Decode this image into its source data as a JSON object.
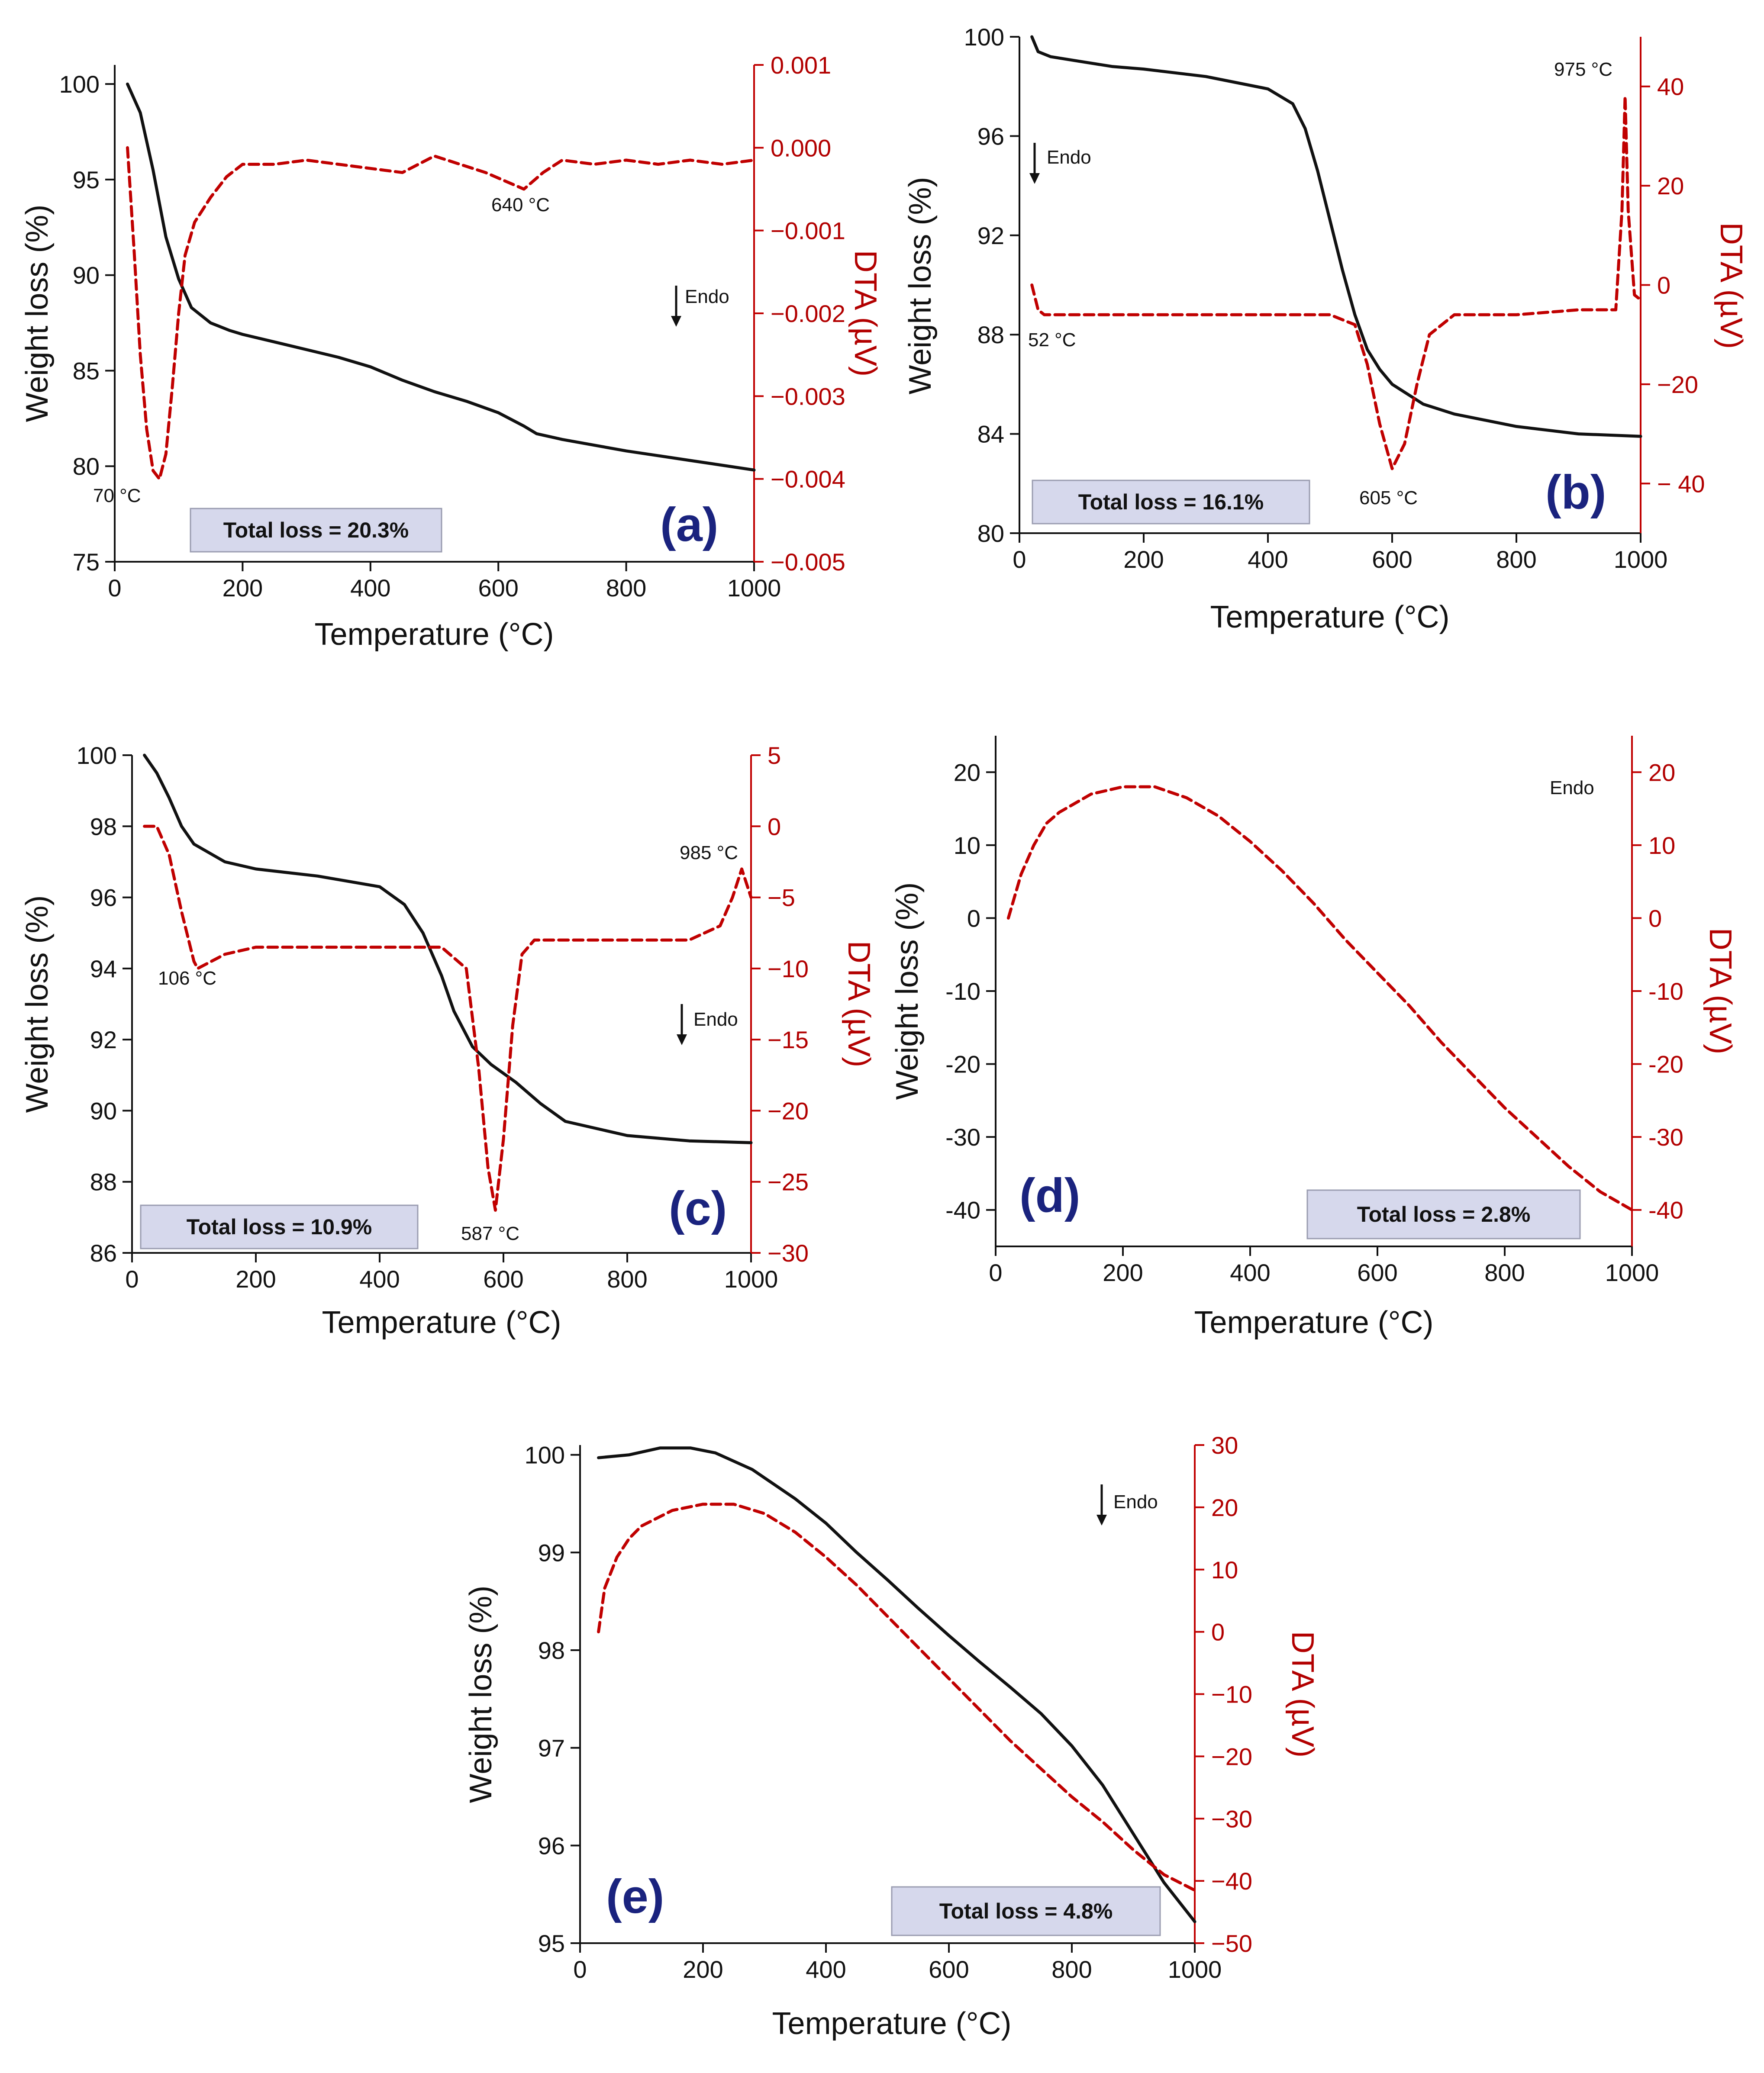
{
  "colors": {
    "tga": "#111111",
    "dta": "#c00000",
    "badge_bg": "#d6d8ec",
    "panel_label": "#1a237e"
  },
  "chart_data": [
    {
      "id": "a",
      "type": "line",
      "panel_label": "(a)",
      "xlabel": "Temperature (°C)",
      "ylabel": "Weight loss (%)",
      "y2label": "DTA (µV)",
      "xlim": [
        0,
        1000
      ],
      "ylim": [
        75,
        101
      ],
      "y2lim": [
        -0.005,
        0.001
      ],
      "xticks": [
        0,
        200,
        400,
        600,
        800,
        1000
      ],
      "yticks": [
        75,
        80,
        85,
        90,
        95,
        100
      ],
      "y2ticks": [
        -0.005,
        -0.004,
        -0.003,
        -0.002,
        -0.001,
        0.0,
        0.001
      ],
      "y2tick_labels": [
        "−0.005",
        "−0.004",
        "−0.003",
        "−0.002",
        "−0.001",
        "0.000",
        "0.001"
      ],
      "total_loss": "Total loss = 20.3%",
      "endo": "Endo",
      "series": [
        {
          "name": "TGA",
          "axis": "left",
          "style": "solid",
          "x": [
            20,
            40,
            60,
            80,
            100,
            120,
            150,
            180,
            200,
            250,
            300,
            350,
            400,
            450,
            500,
            550,
            600,
            640,
            660,
            680,
            700,
            750,
            800,
            850,
            900,
            950,
            1000
          ],
          "y": [
            100,
            98.5,
            95.5,
            92,
            89.8,
            88.3,
            87.5,
            87.1,
            86.9,
            86.5,
            86.1,
            85.7,
            85.2,
            84.5,
            83.9,
            83.4,
            82.8,
            82.1,
            81.7,
            81.55,
            81.4,
            81.1,
            80.8,
            80.55,
            80.3,
            80.05,
            79.8
          ]
        },
        {
          "name": "DTA",
          "axis": "right",
          "style": "dashed",
          "x": [
            20,
            30,
            40,
            50,
            60,
            70,
            80,
            90,
            100,
            110,
            125,
            150,
            175,
            200,
            250,
            300,
            350,
            400,
            450,
            500,
            540,
            580,
            610,
            640,
            670,
            700,
            750,
            800,
            850,
            900,
            950,
            1000
          ],
          "y": [
            0.0,
            -0.0012,
            -0.0025,
            -0.0034,
            -0.0039,
            -0.004,
            -0.0037,
            -0.0029,
            -0.002,
            -0.0013,
            -0.0009,
            -0.0006,
            -0.00035,
            -0.0002,
            -0.0002,
            -0.00015,
            -0.0002,
            -0.00025,
            -0.0003,
            -0.0001,
            -0.0002,
            -0.0003,
            -0.0004,
            -0.0005,
            -0.0003,
            -0.00015,
            -0.0002,
            -0.00015,
            -0.0002,
            -0.00015,
            -0.0002,
            -0.00015
          ]
        }
      ],
      "annotations": [
        "70 °C",
        "640 °C"
      ]
    },
    {
      "id": "b",
      "type": "line",
      "panel_label": "(b)",
      "xlabel": "Temperature (°C)",
      "ylabel": "Weight loss (%)",
      "y2label": "DTA (µV)",
      "xlim": [
        0,
        1000
      ],
      "ylim": [
        80,
        100
      ],
      "y2lim": [
        -50,
        50
      ],
      "xticks": [
        0,
        200,
        400,
        600,
        800,
        1000
      ],
      "yticks": [
        80,
        84,
        88,
        92,
        96,
        100
      ],
      "y2ticks": [
        -40,
        -20,
        0,
        20,
        40
      ],
      "y2tick_labels": [
        "− 40",
        "−20",
        "0",
        "20",
        "40"
      ],
      "total_loss": "Total loss = 16.1%",
      "endo": "Endo",
      "series": [
        {
          "name": "TGA",
          "axis": "left",
          "style": "solid",
          "x": [
            20,
            30,
            50,
            100,
            150,
            200,
            300,
            400,
            440,
            460,
            480,
            500,
            520,
            540,
            560,
            580,
            600,
            650,
            700,
            800,
            900,
            1000
          ],
          "y": [
            100,
            99.4,
            99.2,
            99.0,
            98.8,
            98.7,
            98.4,
            97.9,
            97.3,
            96.3,
            94.6,
            92.6,
            90.6,
            88.8,
            87.4,
            86.6,
            86.0,
            85.2,
            84.8,
            84.3,
            84.0,
            83.9
          ]
        },
        {
          "name": "DTA",
          "axis": "right",
          "style": "dashed",
          "x": [
            20,
            30,
            40,
            60,
            100,
            200,
            300,
            400,
            500,
            540,
            560,
            580,
            600,
            620,
            640,
            660,
            700,
            750,
            800,
            900,
            960,
            970,
            975,
            980,
            990,
            1000
          ],
          "y": [
            0,
            -5,
            -6,
            -6,
            -6,
            -6,
            -6,
            -6,
            -6,
            -8,
            -16,
            -28,
            -37,
            -32,
            -20,
            -10,
            -6,
            -6,
            -6,
            -5,
            -5,
            15,
            38,
            15,
            -2,
            -3
          ]
        }
      ],
      "annotations": [
        "52 °C",
        "605 °C",
        "975 °C"
      ]
    },
    {
      "id": "c",
      "type": "line",
      "panel_label": "(c)",
      "xlabel": "Temperature (°C)",
      "ylabel": "Weight loss (%)",
      "y2label": "DTA (µV)",
      "xlim": [
        0,
        1000
      ],
      "ylim": [
        86,
        100
      ],
      "y2lim": [
        -30,
        5
      ],
      "xticks": [
        0,
        200,
        400,
        600,
        800,
        1000
      ],
      "yticks": [
        86,
        88,
        90,
        92,
        94,
        96,
        98,
        100
      ],
      "y2ticks": [
        -30,
        -25,
        -20,
        -15,
        -10,
        -5,
        0,
        5
      ],
      "y2tick_labels": [
        "−30",
        "−25",
        "−20",
        "−15",
        "−10",
        "−5",
        "0",
        "5"
      ],
      "total_loss": "Total loss = 10.9%",
      "endo": "Endo",
      "series": [
        {
          "name": "TGA",
          "axis": "left",
          "style": "solid",
          "x": [
            20,
            40,
            60,
            80,
            100,
            150,
            200,
            300,
            400,
            440,
            470,
            500,
            520,
            550,
            580,
            620,
            660,
            700,
            750,
            800,
            900,
            1000
          ],
          "y": [
            100,
            99.5,
            98.8,
            98.0,
            97.5,
            97.0,
            96.8,
            96.6,
            96.3,
            95.8,
            95.0,
            93.8,
            92.8,
            91.8,
            91.3,
            90.8,
            90.2,
            89.7,
            89.5,
            89.3,
            89.15,
            89.1
          ]
        },
        {
          "name": "DTA",
          "axis": "right",
          "style": "dashed",
          "x": [
            20,
            40,
            60,
            80,
            100,
            106,
            150,
            200,
            300,
            400,
            500,
            540,
            560,
            575,
            587,
            600,
            615,
            630,
            650,
            700,
            800,
            900,
            950,
            970,
            985,
            1000
          ],
          "y": [
            0,
            0,
            -2,
            -6,
            -9.5,
            -10,
            -9,
            -8.5,
            -8.5,
            -8.5,
            -8.5,
            -10,
            -17,
            -24,
            -27,
            -22,
            -14,
            -9,
            -8,
            -8,
            -8,
            -8,
            -7,
            -5,
            -3,
            -5
          ]
        }
      ],
      "annotations": [
        "106 °C",
        "587 °C",
        "985 °C"
      ]
    },
    {
      "id": "d",
      "type": "line",
      "panel_label": "(d)",
      "xlabel": "Temperature (°C)",
      "ylabel": "Weight loss (%)",
      "y2label": "DTA (µV)",
      "xlim": [
        0,
        1000
      ],
      "ylim": [
        -45,
        25
      ],
      "y2lim": [
        -45,
        25
      ],
      "xticks": [
        0,
        200,
        400,
        600,
        800,
        1000
      ],
      "yticks": [
        -40,
        -30,
        -20,
        -10,
        0,
        10,
        20
      ],
      "y2ticks": [
        -40,
        -30,
        -20,
        -10,
        0,
        10,
        20
      ],
      "total_loss": "Total loss = 2.8%",
      "endo": "Endo",
      "series": [
        {
          "name": "DTA",
          "axis": "right",
          "style": "dashed",
          "x": [
            20,
            40,
            60,
            80,
            100,
            150,
            200,
            250,
            300,
            350,
            400,
            450,
            500,
            550,
            600,
            650,
            700,
            750,
            800,
            850,
            900,
            950,
            1000
          ],
          "y": [
            0,
            6,
            10,
            13,
            14.5,
            17,
            18,
            18,
            16.5,
            14,
            10.5,
            6.5,
            2,
            -3,
            -7.5,
            -12,
            -17,
            -21.5,
            -26,
            -30,
            -34,
            -37.5,
            -40
          ]
        }
      ],
      "annotations": []
    },
    {
      "id": "e",
      "type": "line",
      "panel_label": "(e)",
      "xlabel": "Temperature (°C)",
      "ylabel": "Weight loss (%)",
      "y2label": "DTA (µV)",
      "xlim": [
        0,
        1000
      ],
      "ylim": [
        95,
        100.1
      ],
      "y2lim": [
        -50,
        30
      ],
      "xticks": [
        0,
        200,
        400,
        600,
        800,
        1000
      ],
      "yticks": [
        95,
        96,
        97,
        98,
        99,
        100
      ],
      "y2ticks": [
        -50,
        -40,
        -30,
        -20,
        -10,
        0,
        10,
        20,
        30
      ],
      "y2tick_labels": [
        "−50",
        "−40",
        "−30",
        "−20",
        "−10",
        "0",
        "10",
        "20",
        "30"
      ],
      "total_loss": "Total loss = 4.8%",
      "endo": "Endo",
      "series": [
        {
          "name": "TGA",
          "axis": "left",
          "style": "solid",
          "x": [
            30,
            80,
            130,
            180,
            220,
            280,
            350,
            400,
            450,
            500,
            550,
            600,
            650,
            700,
            750,
            800,
            850,
            900,
            950,
            1000
          ],
          "y": [
            99.97,
            100.0,
            100.07,
            100.07,
            100.02,
            99.85,
            99.55,
            99.3,
            99.0,
            98.72,
            98.43,
            98.15,
            97.88,
            97.62,
            97.35,
            97.02,
            96.62,
            96.12,
            95.62,
            95.22
          ]
        },
        {
          "name": "DTA",
          "axis": "right",
          "style": "dashed",
          "x": [
            30,
            40,
            60,
            80,
            100,
            150,
            200,
            250,
            300,
            350,
            400,
            450,
            500,
            550,
            600,
            650,
            700,
            750,
            800,
            850,
            900,
            950,
            1000
          ],
          "y": [
            0,
            7,
            12,
            15,
            17,
            19.5,
            20.5,
            20.5,
            19,
            16,
            12,
            7.5,
            2.5,
            -2.5,
            -7.5,
            -12.5,
            -17.5,
            -22,
            -26.5,
            -30.5,
            -35,
            -39,
            -41.5
          ]
        }
      ],
      "annotations": []
    }
  ]
}
